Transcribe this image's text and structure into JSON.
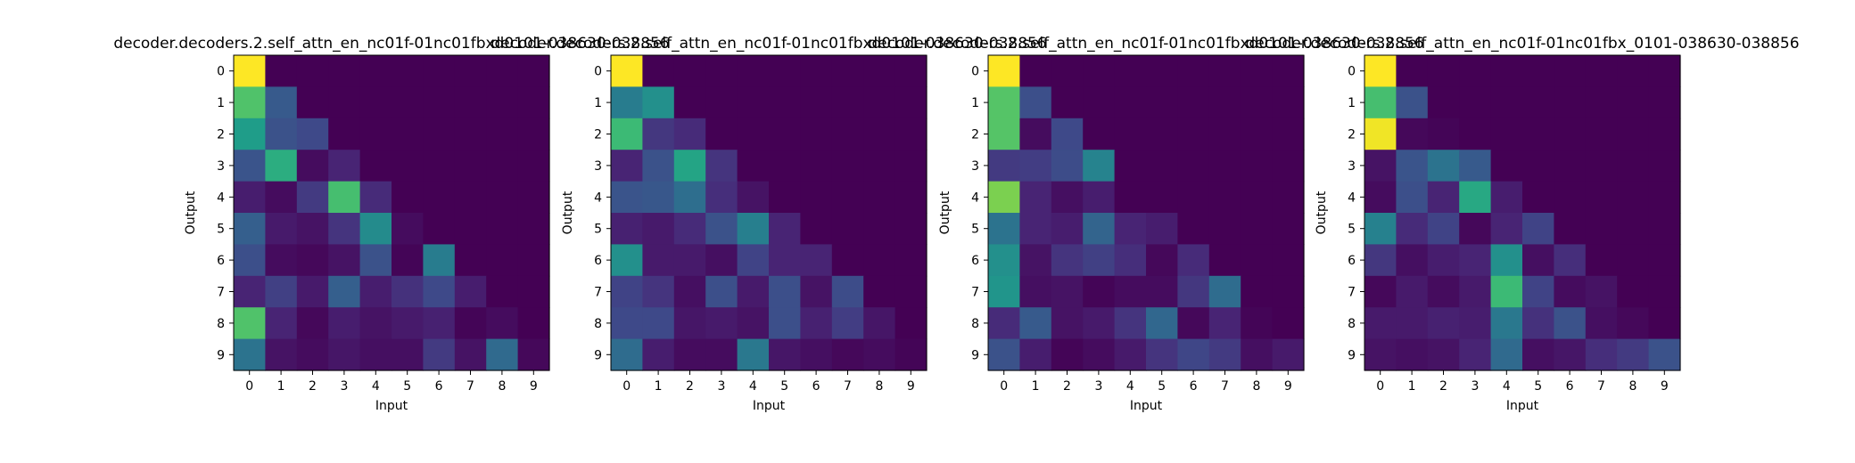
{
  "chart_data": [
    {
      "type": "heatmap",
      "title": "decoder.decoders.2.self_attn_en_nc01f-01nc01fbxd0101-038630-038856",
      "xlabel": "Input",
      "ylabel": "Output",
      "x_ticks": [
        "0",
        "1",
        "2",
        "3",
        "4",
        "5",
        "6",
        "7",
        "8",
        "9"
      ],
      "y_ticks": [
        "0",
        "1",
        "2",
        "3",
        "4",
        "5",
        "6",
        "7",
        "8",
        "9"
      ],
      "colormap": "viridis",
      "grid": false,
      "values": [
        [
          1.0,
          0,
          0,
          0,
          0,
          0,
          0,
          0,
          0,
          0
        ],
        [
          0.72,
          0.28,
          0,
          0,
          0,
          0,
          0,
          0,
          0,
          0
        ],
        [
          0.55,
          0.25,
          0.22,
          0,
          0,
          0,
          0,
          0,
          0,
          0
        ],
        [
          0.26,
          0.62,
          0.03,
          0.1,
          0,
          0,
          0,
          0,
          0,
          0
        ],
        [
          0.08,
          0.03,
          0.17,
          0.7,
          0.12,
          0,
          0,
          0,
          0,
          0
        ],
        [
          0.3,
          0.07,
          0.05,
          0.15,
          0.48,
          0.03,
          0,
          0,
          0,
          0
        ],
        [
          0.24,
          0.03,
          0.02,
          0.05,
          0.25,
          0.01,
          0.42,
          0,
          0,
          0
        ],
        [
          0.1,
          0.19,
          0.07,
          0.3,
          0.08,
          0.14,
          0.22,
          0.08,
          0,
          0
        ],
        [
          0.72,
          0.1,
          0.02,
          0.08,
          0.05,
          0.07,
          0.09,
          0.01,
          0.03,
          0
        ],
        [
          0.38,
          0.05,
          0.03,
          0.06,
          0.04,
          0.04,
          0.17,
          0.05,
          0.34,
          0.02
        ]
      ]
    },
    {
      "type": "heatmap",
      "title": "decoder.decoders.2.self_attn_en_nc01f-01nc01fbxd0101-038630-038856",
      "xlabel": "Input",
      "ylabel": "Output",
      "x_ticks": [
        "0",
        "1",
        "2",
        "3",
        "4",
        "5",
        "6",
        "7",
        "8",
        "9"
      ],
      "y_ticks": [
        "0",
        "1",
        "2",
        "3",
        "4",
        "5",
        "6",
        "7",
        "8",
        "9"
      ],
      "colormap": "viridis",
      "grid": false,
      "values": [
        [
          1.0,
          0,
          0,
          0,
          0,
          0,
          0,
          0,
          0,
          0
        ],
        [
          0.42,
          0.5,
          0,
          0,
          0,
          0,
          0,
          0,
          0,
          0
        ],
        [
          0.68,
          0.16,
          0.12,
          0,
          0,
          0,
          0,
          0,
          0,
          0
        ],
        [
          0.1,
          0.25,
          0.58,
          0.15,
          0,
          0,
          0,
          0,
          0,
          0
        ],
        [
          0.26,
          0.27,
          0.36,
          0.13,
          0.05,
          0,
          0,
          0,
          0,
          0
        ],
        [
          0.09,
          0.07,
          0.12,
          0.25,
          0.43,
          0.1,
          0,
          0,
          0,
          0
        ],
        [
          0.5,
          0.07,
          0.07,
          0.04,
          0.2,
          0.1,
          0.1,
          0,
          0,
          0
        ],
        [
          0.2,
          0.15,
          0.04,
          0.24,
          0.07,
          0.24,
          0.05,
          0.23,
          0,
          0
        ],
        [
          0.22,
          0.22,
          0.06,
          0.07,
          0.05,
          0.24,
          0.09,
          0.18,
          0.06,
          0
        ],
        [
          0.35,
          0.08,
          0.03,
          0.03,
          0.4,
          0.06,
          0.04,
          0.02,
          0.03,
          0.01
        ]
      ]
    },
    {
      "type": "heatmap",
      "title": "decoder.decoders.2.self_attn_en_nc01f-01nc01fbxd0101-038630-038856",
      "xlabel": "Input",
      "ylabel": "Output",
      "x_ticks": [
        "0",
        "1",
        "2",
        "3",
        "4",
        "5",
        "6",
        "7",
        "8",
        "9"
      ],
      "y_ticks": [
        "0",
        "1",
        "2",
        "3",
        "4",
        "5",
        "6",
        "7",
        "8",
        "9"
      ],
      "colormap": "viridis",
      "grid": false,
      "values": [
        [
          1.0,
          0,
          0,
          0,
          0,
          0,
          0,
          0,
          0,
          0
        ],
        [
          0.73,
          0.24,
          0,
          0,
          0,
          0,
          0,
          0,
          0,
          0
        ],
        [
          0.73,
          0.03,
          0.22,
          0,
          0,
          0,
          0,
          0,
          0,
          0
        ],
        [
          0.17,
          0.18,
          0.23,
          0.45,
          0,
          0,
          0,
          0,
          0,
          0
        ],
        [
          0.8,
          0.1,
          0.04,
          0.08,
          0,
          0,
          0,
          0,
          0,
          0
        ],
        [
          0.38,
          0.1,
          0.08,
          0.32,
          0.1,
          0.08,
          0,
          0,
          0,
          0
        ],
        [
          0.5,
          0.05,
          0.15,
          0.19,
          0.13,
          0.02,
          0.12,
          0,
          0,
          0
        ],
        [
          0.52,
          0.04,
          0.05,
          0.01,
          0.03,
          0.03,
          0.16,
          0.35,
          0,
          0
        ],
        [
          0.12,
          0.28,
          0.05,
          0.07,
          0.15,
          0.33,
          0.02,
          0.1,
          0.01,
          0
        ],
        [
          0.25,
          0.08,
          0.01,
          0.03,
          0.07,
          0.15,
          0.21,
          0.17,
          0.04,
          0.07
        ]
      ]
    },
    {
      "type": "heatmap",
      "title": "decoder.decoders.2.self_attn_en_nc01f-01nc01fbx_0101-038630-038856",
      "xlabel": "Input",
      "ylabel": "Output",
      "x_ticks": [
        "0",
        "1",
        "2",
        "3",
        "4",
        "5",
        "6",
        "7",
        "8",
        "9"
      ],
      "y_ticks": [
        "0",
        "1",
        "2",
        "3",
        "4",
        "5",
        "6",
        "7",
        "8",
        "9"
      ],
      "colormap": "viridis",
      "grid": false,
      "values": [
        [
          1.0,
          0,
          0,
          0,
          0,
          0,
          0,
          0,
          0,
          0
        ],
        [
          0.7,
          0.25,
          0,
          0,
          0,
          0,
          0,
          0,
          0,
          0
        ],
        [
          0.98,
          0.02,
          0.01,
          0,
          0,
          0,
          0,
          0,
          0,
          0
        ],
        [
          0.05,
          0.26,
          0.38,
          0.28,
          0,
          0,
          0,
          0,
          0,
          0
        ],
        [
          0.03,
          0.24,
          0.1,
          0.6,
          0.08,
          0,
          0,
          0,
          0,
          0
        ],
        [
          0.44,
          0.12,
          0.2,
          0.02,
          0.1,
          0.2,
          0,
          0,
          0,
          0
        ],
        [
          0.16,
          0.04,
          0.08,
          0.1,
          0.5,
          0.04,
          0.13,
          0,
          0,
          0
        ],
        [
          0.02,
          0.07,
          0.03,
          0.07,
          0.68,
          0.2,
          0.03,
          0.05,
          0,
          0
        ],
        [
          0.07,
          0.07,
          0.09,
          0.08,
          0.4,
          0.14,
          0.25,
          0.04,
          0.02,
          0
        ],
        [
          0.05,
          0.04,
          0.05,
          0.1,
          0.34,
          0.04,
          0.06,
          0.13,
          0.17,
          0.25
        ]
      ]
    }
  ]
}
